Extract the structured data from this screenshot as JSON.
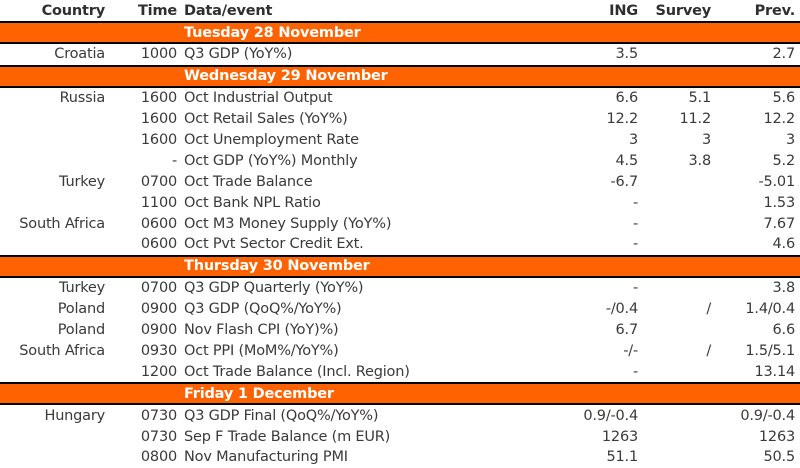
{
  "table": {
    "headers": {
      "country": "Country",
      "time": "Time",
      "event": "Data/event",
      "ing": "ING",
      "survey": "Survey",
      "prev": "Prev."
    },
    "colors": {
      "band_orange": "#FF6200",
      "border_black": "#000000",
      "text": "#3a3a3a"
    },
    "sections": [
      {
        "date": "Tuesday 28 November",
        "rows": [
          {
            "country": "Croatia",
            "time": "1000",
            "event": "Q3 GDP (YoY%)",
            "ing": "3.5",
            "survey": "",
            "prev": "2.7"
          }
        ]
      },
      {
        "date": "Wednesday 29 November",
        "rows": [
          {
            "country": "Russia",
            "time": "1600",
            "event": "Oct Industrial Output",
            "ing": "6.6",
            "survey": "5.1",
            "prev": "5.6"
          },
          {
            "country": "",
            "time": "1600",
            "event": "Oct Retail Sales (YoY%)",
            "ing": "12.2",
            "survey": "11.2",
            "prev": "12.2"
          },
          {
            "country": "",
            "time": "1600",
            "event": "Oct Unemployment Rate",
            "ing": "3",
            "survey": "3",
            "prev": "3"
          },
          {
            "country": "",
            "time": "-",
            "event": "Oct GDP (YoY%) Monthly",
            "ing": "4.5",
            "survey": "3.8",
            "prev": "5.2"
          },
          {
            "country": "Turkey",
            "time": "0700",
            "event": "Oct Trade Balance",
            "ing": "-6.7",
            "survey": "",
            "prev": "-5.01"
          },
          {
            "country": "",
            "time": "1100",
            "event": "Oct Bank NPL Ratio",
            "ing": "-",
            "survey": "",
            "prev": "1.53"
          },
          {
            "country": "South Africa",
            "time": "0600",
            "event": "Oct M3 Money Supply (YoY%)",
            "ing": "-",
            "survey": "",
            "prev": "7.67"
          },
          {
            "country": "",
            "time": "0600",
            "event": "Oct Pvt Sector Credit Ext.",
            "ing": "-",
            "survey": "",
            "prev": "4.6"
          }
        ]
      },
      {
        "date": "Thursday 30 November",
        "rows": [
          {
            "country": "Turkey",
            "time": "0700",
            "event": "Q3 GDP Quarterly (YoY%)",
            "ing": "-",
            "survey": "",
            "prev": "3.8"
          },
          {
            "country": "Poland",
            "time": "0900",
            "event": "Q3 GDP (QoQ%/YoY%)",
            "ing": "-/0.4",
            "survey": "/",
            "prev": "1.4/0.4"
          },
          {
            "country": "Poland",
            "time": "0900",
            "event": "Nov Flash CPI (YoY)%)",
            "ing": "6.7",
            "survey": "",
            "prev": "6.6"
          },
          {
            "country": "South Africa",
            "time": "0930",
            "event": "Oct PPI (MoM%/YoY%)",
            "ing": "-/-",
            "survey": "/",
            "prev": "1.5/5.1"
          },
          {
            "country": "",
            "time": "1200",
            "event": "Oct Trade Balance (Incl. Region)",
            "ing": "-",
            "survey": "",
            "prev": "13.14"
          }
        ]
      },
      {
        "date": "Friday 1 December",
        "rows": [
          {
            "country": "Hungary",
            "time": "0730",
            "event": "Q3 GDP Final (QoQ%/YoY%)",
            "ing": "0.9/-0.4",
            "survey": "",
            "prev": "0.9/-0.4"
          },
          {
            "country": "",
            "time": "0730",
            "event": "Sep F Trade Balance (m EUR)",
            "ing": "1263",
            "survey": "",
            "prev": "1263"
          },
          {
            "country": "",
            "time": "0800",
            "event": "Nov Manufacturing PMI",
            "ing": "51.1",
            "survey": "",
            "prev": "50.5"
          }
        ]
      }
    ]
  }
}
